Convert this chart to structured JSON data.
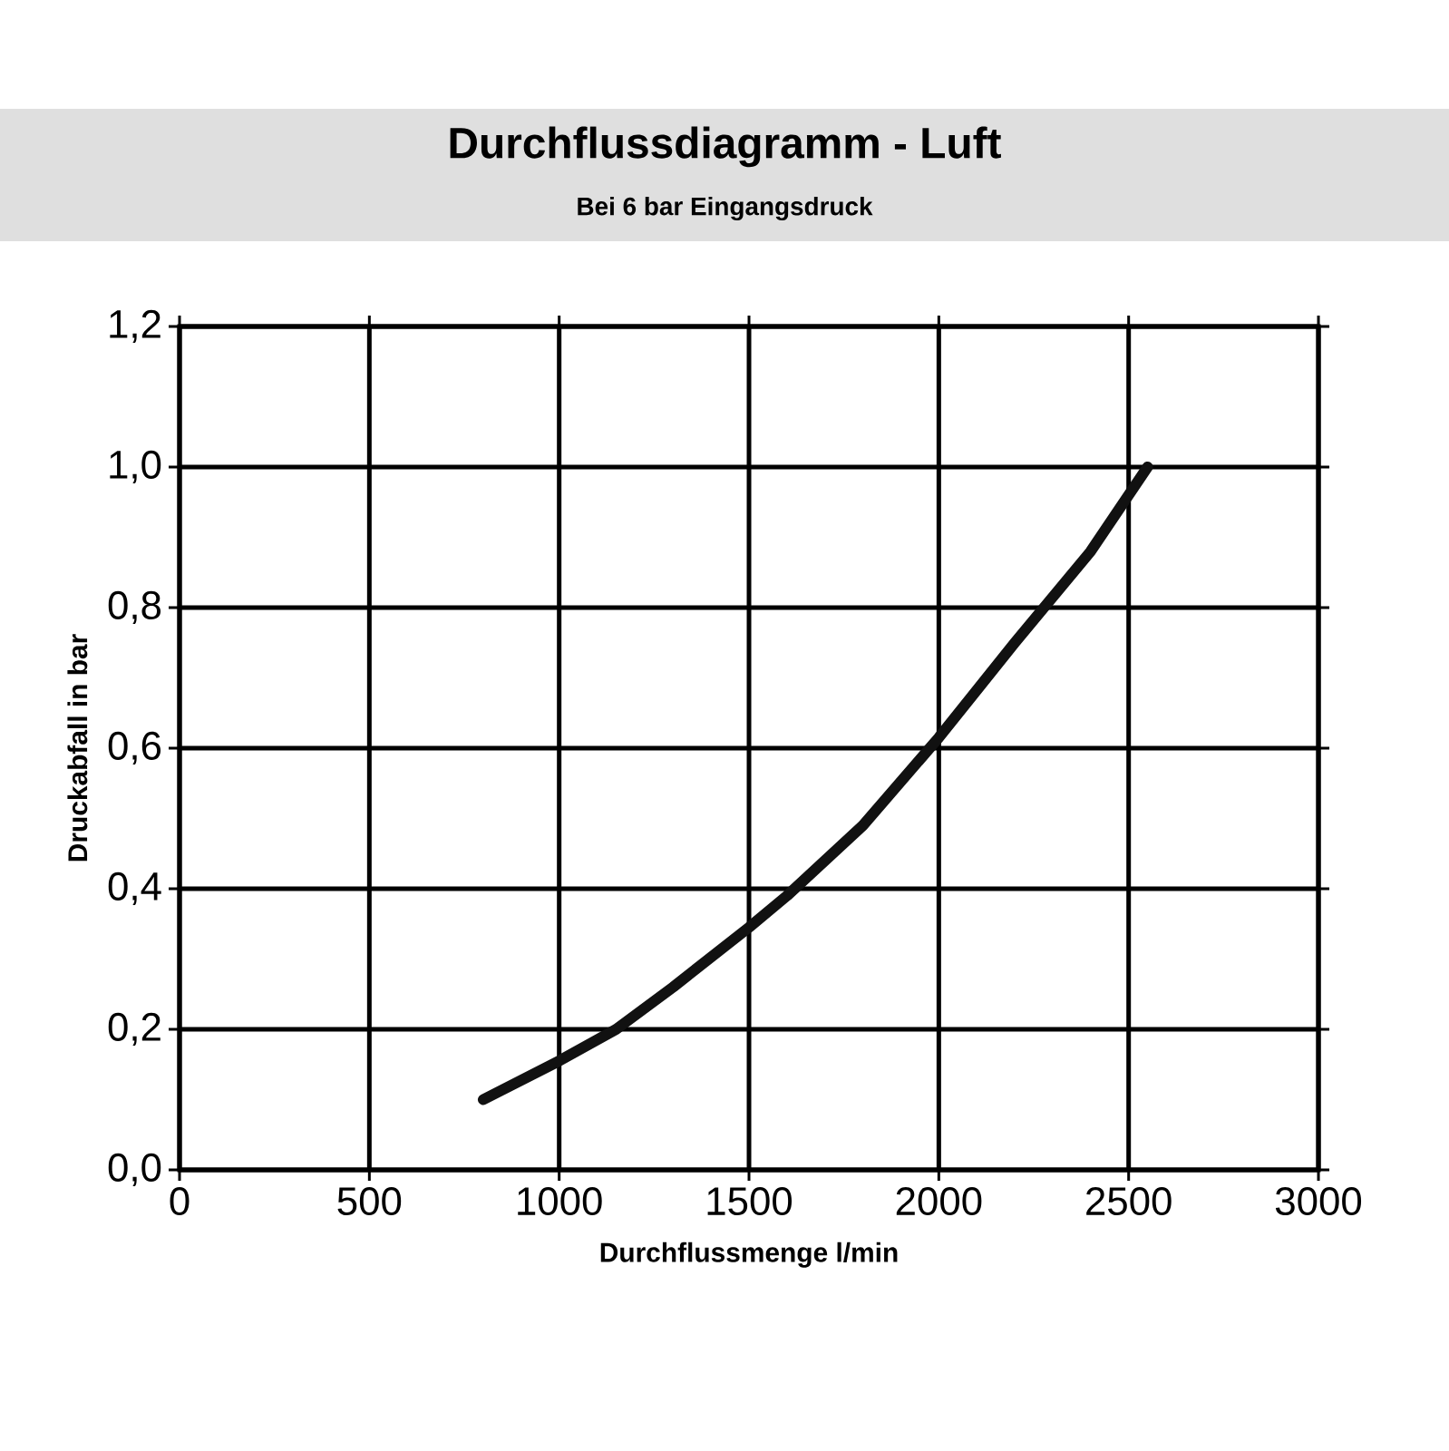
{
  "chart_data": {
    "type": "line",
    "title": "Durchflussdiagramm - Luft",
    "subtitle": "Bei 6 bar Eingangsdruck",
    "xlabel": "Durchflussmenge l/min",
    "ylabel": "Druckabfall in bar",
    "x": [
      800,
      1000,
      1150,
      1300,
      1500,
      1600,
      1800,
      2000,
      2200,
      2400,
      2550
    ],
    "series": [
      {
        "color": "#111111",
        "values": [
          0.1,
          0.155,
          0.2,
          0.26,
          0.345,
          0.39,
          0.49,
          0.615,
          0.75,
          0.88,
          1.0
        ]
      }
    ],
    "xlim": [
      0,
      3000
    ],
    "xticks": [
      0,
      500,
      1000,
      1500,
      2000,
      2500,
      3000
    ],
    "ylim": [
      0,
      1.2
    ],
    "yticks": [
      {
        "value": 0,
        "label": "0,0"
      },
      {
        "value": 0.2,
        "label": "0,2"
      },
      {
        "value": 0.4,
        "label": "0,4"
      },
      {
        "value": 0.6,
        "label": "0,6"
      },
      {
        "value": 0.8,
        "label": "0,8"
      },
      {
        "value": 1.0,
        "label": "1,0"
      },
      {
        "value": 1.2,
        "label": "1,2"
      }
    ],
    "grid": true,
    "marker": "none",
    "line_style": "solid"
  }
}
